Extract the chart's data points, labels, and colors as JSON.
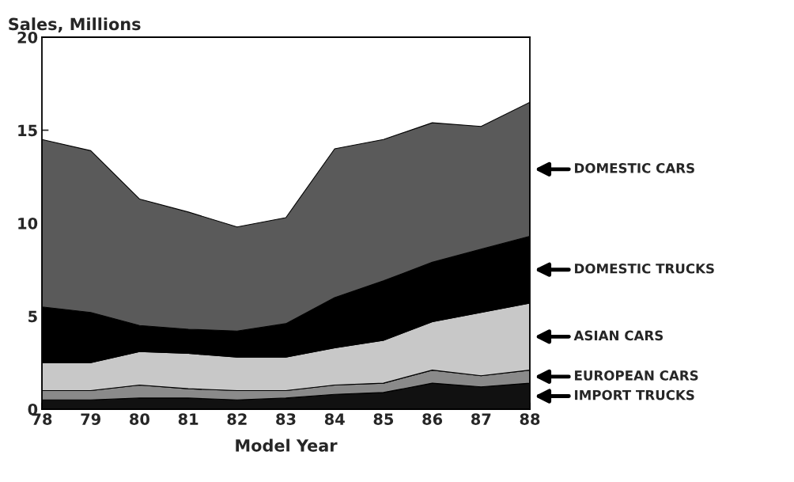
{
  "chart_data": {
    "type": "area",
    "stacked": true,
    "ylabel": "Sales, Millions",
    "xlabel": "Model Year",
    "x": [
      78,
      79,
      80,
      81,
      82,
      83,
      84,
      85,
      86,
      87,
      88
    ],
    "xlim": [
      78,
      88
    ],
    "xticks": [
      78,
      79,
      80,
      81,
      82,
      83,
      84,
      85,
      86,
      87,
      88
    ],
    "ylim": [
      0,
      20
    ],
    "yticks": [
      0,
      5,
      10,
      15,
      20
    ],
    "grid": false,
    "legend": "right",
    "series": [
      {
        "name": "IMPORT TRUCKS",
        "color": "#111111",
        "values": [
          0.5,
          0.5,
          0.6,
          0.6,
          0.5,
          0.6,
          0.8,
          0.9,
          1.4,
          1.2,
          1.4
        ]
      },
      {
        "name": "EUROPEAN CARS",
        "color": "#8a8a8a",
        "values": [
          0.5,
          0.5,
          0.7,
          0.5,
          0.5,
          0.4,
          0.5,
          0.5,
          0.7,
          0.6,
          0.7
        ]
      },
      {
        "name": "ASIAN CARS",
        "color": "#c8c8c8",
        "values": [
          1.5,
          1.5,
          1.8,
          1.9,
          1.8,
          1.8,
          2.0,
          2.3,
          2.6,
          3.4,
          3.6
        ]
      },
      {
        "name": "DOMESTIC TRUCKS",
        "color": "#000000",
        "values": [
          3.0,
          2.7,
          1.4,
          1.3,
          1.4,
          1.8,
          2.7,
          3.2,
          3.2,
          3.4,
          3.6
        ]
      },
      {
        "name": "DOMESTIC CARS",
        "color": "#5a5a5a",
        "values": [
          9.0,
          8.7,
          6.8,
          6.3,
          5.6,
          5.7,
          8.0,
          7.6,
          7.5,
          6.6,
          7.2
        ]
      }
    ]
  }
}
